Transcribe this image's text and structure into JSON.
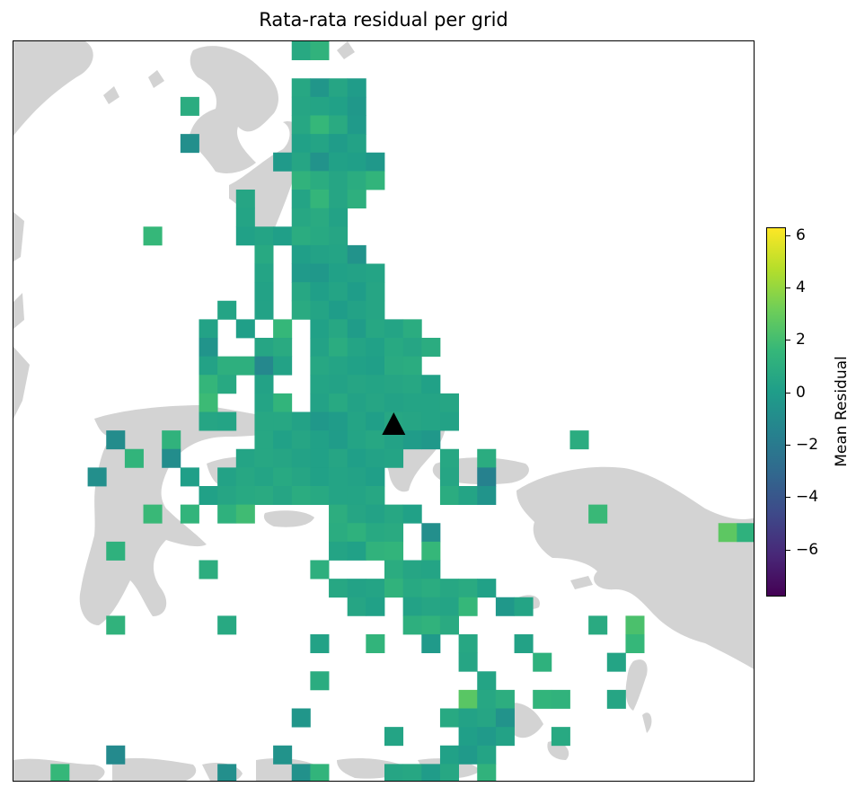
{
  "title": "Rata-rata residual per grid",
  "colorbar": {
    "label": "Mean Residual",
    "min": -7.8,
    "max": 6.3,
    "ticks": [
      "6",
      "4",
      "2",
      "0",
      "−2",
      "−4",
      "−6"
    ],
    "tick_values": [
      6,
      4,
      2,
      0,
      -2,
      -4,
      -6
    ],
    "colormap": "viridis"
  },
  "colors": {
    "land": "#d3d3d3",
    "marker": "#000000",
    "frame": "#000000"
  },
  "marker": {
    "shape": "triangle-up",
    "label": ""
  },
  "chart_data": {
    "type": "heatmap",
    "title": "Rata-rata residual per grid",
    "grid_columns": 40,
    "grid_rows": 40,
    "colorbar_label": "Mean Residual",
    "value_range": [
      -7.8,
      6.3
    ],
    "cells": [
      [
        15,
        0,
        0.7
      ],
      [
        16,
        0,
        1.3
      ],
      [
        15,
        2,
        0.6
      ],
      [
        16,
        2,
        -0.4
      ],
      [
        17,
        2,
        0.5
      ],
      [
        18,
        2,
        -0.1
      ],
      [
        9,
        3,
        0.9
      ],
      [
        15,
        3,
        0.5
      ],
      [
        16,
        3,
        0.4
      ],
      [
        17,
        3,
        0.2
      ],
      [
        18,
        3,
        -0.3
      ],
      [
        15,
        4,
        0.6
      ],
      [
        16,
        4,
        1.6
      ],
      [
        17,
        4,
        0.8
      ],
      [
        18,
        4,
        -0.2
      ],
      [
        9,
        5,
        -0.8
      ],
      [
        15,
        5,
        0.2
      ],
      [
        16,
        5,
        0.4
      ],
      [
        17,
        5,
        -0.1
      ],
      [
        18,
        5,
        0.3
      ],
      [
        14,
        6,
        -0.2
      ],
      [
        15,
        6,
        0.5
      ],
      [
        16,
        6,
        -0.6
      ],
      [
        17,
        6,
        0.2
      ],
      [
        18,
        6,
        0.1
      ],
      [
        19,
        6,
        -0.3
      ],
      [
        15,
        7,
        1.3
      ],
      [
        16,
        7,
        0.9
      ],
      [
        17,
        7,
        0.5
      ],
      [
        18,
        7,
        0.9
      ],
      [
        19,
        7,
        1.4
      ],
      [
        12,
        8,
        0.5
      ],
      [
        15,
        8,
        0.4
      ],
      [
        16,
        8,
        1.5
      ],
      [
        17,
        8,
        0.5
      ],
      [
        18,
        8,
        1.1
      ],
      [
        12,
        9,
        0.4
      ],
      [
        15,
        9,
        0.6
      ],
      [
        16,
        9,
        0.8
      ],
      [
        17,
        9,
        0.3
      ],
      [
        7,
        10,
        1.6
      ],
      [
        12,
        10,
        0.2
      ],
      [
        13,
        10,
        0.4
      ],
      [
        14,
        10,
        0.1
      ],
      [
        15,
        10,
        0.9
      ],
      [
        16,
        10,
        0.7
      ],
      [
        17,
        10,
        0.5
      ],
      [
        13,
        11,
        0.7
      ],
      [
        15,
        11,
        0.1
      ],
      [
        16,
        11,
        0.3
      ],
      [
        17,
        11,
        0.4
      ],
      [
        18,
        11,
        -0.6
      ],
      [
        13,
        12,
        0.4
      ],
      [
        15,
        12,
        -0.2
      ],
      [
        16,
        12,
        -0.3
      ],
      [
        17,
        12,
        0.2
      ],
      [
        18,
        12,
        0.3
      ],
      [
        19,
        12,
        0.4
      ],
      [
        13,
        13,
        0.3
      ],
      [
        15,
        13,
        0.6
      ],
      [
        16,
        13,
        0.1
      ],
      [
        17,
        13,
        0.4
      ],
      [
        18,
        13,
        0.0
      ],
      [
        19,
        13,
        0.5
      ],
      [
        11,
        14,
        0.4
      ],
      [
        13,
        14,
        0.3
      ],
      [
        15,
        14,
        0.8
      ],
      [
        16,
        14,
        0.4
      ],
      [
        17,
        14,
        0.0
      ],
      [
        18,
        14,
        0.3
      ],
      [
        19,
        14,
        0.5
      ],
      [
        10,
        15,
        0.3
      ],
      [
        12,
        15,
        0.1
      ],
      [
        14,
        15,
        1.6
      ],
      [
        16,
        15,
        0.2
      ],
      [
        17,
        15,
        0.6
      ],
      [
        18,
        15,
        -0.1
      ],
      [
        19,
        15,
        0.6
      ],
      [
        20,
        15,
        0.4
      ],
      [
        21,
        15,
        0.9
      ],
      [
        10,
        16,
        -0.5
      ],
      [
        13,
        16,
        0.5
      ],
      [
        14,
        16,
        0.8
      ],
      [
        16,
        16,
        0.3
      ],
      [
        17,
        16,
        0.9
      ],
      [
        18,
        16,
        0.4
      ],
      [
        19,
        16,
        0.2
      ],
      [
        20,
        16,
        0.7
      ],
      [
        21,
        16,
        0.5
      ],
      [
        22,
        16,
        0.9
      ],
      [
        10,
        17,
        0.3
      ],
      [
        11,
        17,
        1.1
      ],
      [
        12,
        17,
        1.1
      ],
      [
        13,
        17,
        -1.2
      ],
      [
        14,
        17,
        0.3
      ],
      [
        16,
        17,
        0.6
      ],
      [
        17,
        17,
        0.4
      ],
      [
        18,
        17,
        0.2
      ],
      [
        19,
        17,
        0.1
      ],
      [
        20,
        17,
        0.8
      ],
      [
        21,
        17,
        0.9
      ],
      [
        10,
        18,
        1.5
      ],
      [
        11,
        18,
        0.7
      ],
      [
        13,
        18,
        0.3
      ],
      [
        16,
        18,
        0.4
      ],
      [
        17,
        18,
        0.3
      ],
      [
        18,
        18,
        0.5
      ],
      [
        19,
        18,
        0.4
      ],
      [
        20,
        18,
        0.5
      ],
      [
        21,
        18,
        0.6
      ],
      [
        22,
        18,
        0.2
      ],
      [
        10,
        19,
        1.8
      ],
      [
        13,
        19,
        0.4
      ],
      [
        14,
        19,
        1.4
      ],
      [
        16,
        19,
        0.3
      ],
      [
        17,
        19,
        0.7
      ],
      [
        18,
        19,
        0.3
      ],
      [
        19,
        19,
        0.5
      ],
      [
        20,
        19,
        0.3
      ],
      [
        21,
        19,
        0.4
      ],
      [
        22,
        19,
        0.4
      ],
      [
        23,
        19,
        0.5
      ],
      [
        10,
        20,
        0.5
      ],
      [
        11,
        20,
        0.4
      ],
      [
        13,
        20,
        0.6
      ],
      [
        14,
        20,
        0.6
      ],
      [
        15,
        20,
        0.3
      ],
      [
        16,
        20,
        -0.3
      ],
      [
        17,
        20,
        -0.1
      ],
      [
        18,
        20,
        0.4
      ],
      [
        19,
        20,
        0.1
      ],
      [
        20,
        20,
        0.6
      ],
      [
        21,
        20,
        0.5
      ],
      [
        22,
        20,
        0.4
      ],
      [
        23,
        20,
        0.3
      ],
      [
        5,
        21,
        -1.0
      ],
      [
        8,
        21,
        1.3
      ],
      [
        13,
        21,
        0.6
      ],
      [
        14,
        21,
        0.2
      ],
      [
        15,
        21,
        0.5
      ],
      [
        16,
        21,
        0.2
      ],
      [
        17,
        21,
        -0.1
      ],
      [
        18,
        21,
        0.4
      ],
      [
        19,
        21,
        0.6
      ],
      [
        20,
        21,
        0.3
      ],
      [
        21,
        21,
        -0.1
      ],
      [
        22,
        21,
        -0.3
      ],
      [
        30,
        21,
        0.9
      ],
      [
        6,
        22,
        1.4
      ],
      [
        8,
        22,
        -0.9
      ],
      [
        12,
        22,
        0.4
      ],
      [
        13,
        22,
        0.6
      ],
      [
        14,
        22,
        0.5
      ],
      [
        15,
        22,
        0.3
      ],
      [
        16,
        22,
        0.2
      ],
      [
        17,
        22,
        0.5
      ],
      [
        18,
        22,
        0.1
      ],
      [
        19,
        22,
        0.3
      ],
      [
        20,
        22,
        0.4
      ],
      [
        23,
        22,
        0.6
      ],
      [
        25,
        22,
        0.9
      ],
      [
        4,
        23,
        -0.8
      ],
      [
        9,
        23,
        0.1
      ],
      [
        11,
        23,
        0.3
      ],
      [
        12,
        23,
        0.6
      ],
      [
        13,
        23,
        0.4
      ],
      [
        14,
        23,
        0.7
      ],
      [
        15,
        23,
        0.5
      ],
      [
        16,
        23,
        0.2
      ],
      [
        17,
        23,
        0.4
      ],
      [
        18,
        23,
        0.3
      ],
      [
        19,
        23,
        0.1
      ],
      [
        23,
        23,
        0.5
      ],
      [
        25,
        23,
        -1.6
      ],
      [
        10,
        24,
        0.2
      ],
      [
        11,
        24,
        0.5
      ],
      [
        12,
        24,
        0.7
      ],
      [
        13,
        24,
        0.8
      ],
      [
        14,
        24,
        0.5
      ],
      [
        15,
        24,
        0.9
      ],
      [
        16,
        24,
        0.7
      ],
      [
        17,
        24,
        0.4
      ],
      [
        18,
        24,
        0.4
      ],
      [
        19,
        24,
        0.6
      ],
      [
        23,
        24,
        0.9
      ],
      [
        24,
        24,
        0.4
      ],
      [
        25,
        24,
        -0.5
      ],
      [
        7,
        25,
        1.7
      ],
      [
        9,
        25,
        1.4
      ],
      [
        11,
        25,
        1.2
      ],
      [
        12,
        25,
        1.9
      ],
      [
        17,
        25,
        1.0
      ],
      [
        18,
        25,
        0.5
      ],
      [
        19,
        25,
        0.3
      ],
      [
        20,
        25,
        0.6
      ],
      [
        21,
        25,
        0.2
      ],
      [
        31,
        25,
        1.7
      ],
      [
        17,
        26,
        0.9
      ],
      [
        18,
        26,
        1.2
      ],
      [
        19,
        26,
        0.7
      ],
      [
        20,
        26,
        0.8
      ],
      [
        22,
        26,
        -0.8
      ],
      [
        38,
        26,
        2.7
      ],
      [
        39,
        26,
        1.2
      ],
      [
        5,
        27,
        1.2
      ],
      [
        17,
        27,
        0.4
      ],
      [
        18,
        27,
        0.2
      ],
      [
        19,
        27,
        1.3
      ],
      [
        20,
        27,
        1.4
      ],
      [
        22,
        27,
        1.6
      ],
      [
        10,
        28,
        1.0
      ],
      [
        16,
        28,
        1.1
      ],
      [
        20,
        28,
        0.9
      ],
      [
        21,
        28,
        0.5
      ],
      [
        22,
        28,
        0.4
      ],
      [
        17,
        29,
        0.6
      ],
      [
        18,
        29,
        0.3
      ],
      [
        19,
        29,
        0.4
      ],
      [
        20,
        29,
        1.3
      ],
      [
        21,
        29,
        0.7
      ],
      [
        22,
        29,
        0.9
      ],
      [
        23,
        29,
        0.6
      ],
      [
        24,
        29,
        0.8
      ],
      [
        25,
        29,
        0.2
      ],
      [
        18,
        30,
        0.5
      ],
      [
        19,
        30,
        0.2
      ],
      [
        21,
        30,
        0.3
      ],
      [
        22,
        30,
        0.5
      ],
      [
        23,
        30,
        0.4
      ],
      [
        24,
        30,
        1.6
      ],
      [
        26,
        30,
        -0.3
      ],
      [
        27,
        30,
        0.4
      ],
      [
        5,
        31,
        1.3
      ],
      [
        11,
        31,
        0.7
      ],
      [
        21,
        31,
        1.1
      ],
      [
        22,
        31,
        1.3
      ],
      [
        23,
        31,
        0.8
      ],
      [
        31,
        31,
        0.8
      ],
      [
        33,
        31,
        2.2
      ],
      [
        16,
        32,
        0.3
      ],
      [
        19,
        32,
        1.4
      ],
      [
        22,
        32,
        -0.2
      ],
      [
        24,
        32,
        0.6
      ],
      [
        27,
        32,
        0.3
      ],
      [
        33,
        32,
        1.6
      ],
      [
        24,
        33,
        0.5
      ],
      [
        28,
        33,
        1.2
      ],
      [
        32,
        33,
        0.4
      ],
      [
        16,
        34,
        0.9
      ],
      [
        25,
        34,
        0.4
      ],
      [
        24,
        35,
        2.6
      ],
      [
        25,
        35,
        0.6
      ],
      [
        26,
        35,
        1.0
      ],
      [
        28,
        35,
        1.4
      ],
      [
        29,
        35,
        1.3
      ],
      [
        32,
        35,
        0.5
      ],
      [
        15,
        36,
        -0.4
      ],
      [
        23,
        36,
        0.7
      ],
      [
        24,
        36,
        0.3
      ],
      [
        25,
        36,
        0.5
      ],
      [
        26,
        36,
        -0.6
      ],
      [
        20,
        37,
        0.4
      ],
      [
        24,
        37,
        0.1
      ],
      [
        25,
        37,
        -0.2
      ],
      [
        26,
        37,
        0.3
      ],
      [
        29,
        37,
        0.7
      ],
      [
        5,
        38,
        -1.1
      ],
      [
        14,
        38,
        -0.6
      ],
      [
        23,
        38,
        0.2
      ],
      [
        24,
        38,
        -0.2
      ],
      [
        25,
        38,
        0.4
      ],
      [
        2,
        39,
        1.6
      ],
      [
        11,
        39,
        -0.8
      ],
      [
        15,
        39,
        -0.7
      ],
      [
        16,
        39,
        1.4
      ],
      [
        20,
        39,
        0.5
      ],
      [
        21,
        39,
        0.6
      ],
      [
        22,
        39,
        -0.1
      ],
      [
        23,
        39,
        0.6
      ],
      [
        25,
        39,
        1.3
      ]
    ],
    "marker_cell": [
      20,
      20.7
    ]
  }
}
